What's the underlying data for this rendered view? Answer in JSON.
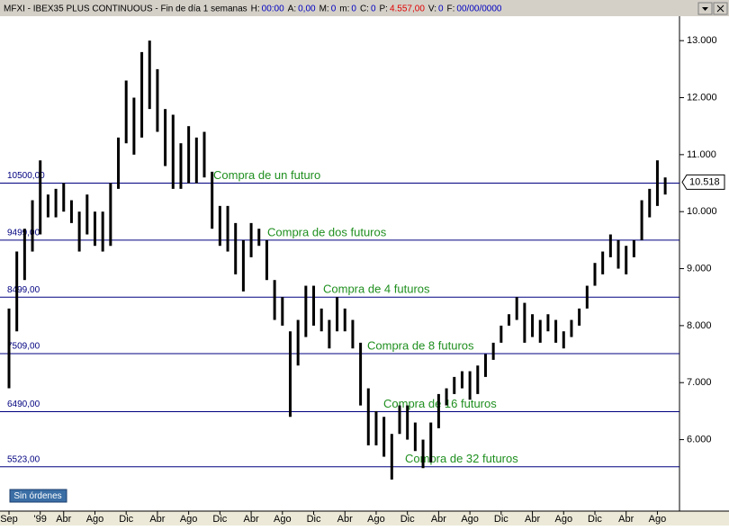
{
  "header": {
    "title": "MFXI - IBEX35 PLUS CONTINUOUS - Fin de día 1 semanas",
    "fields": [
      {
        "label": "H:",
        "value": "00:00",
        "color": "#0000c0"
      },
      {
        "label": "A:",
        "value": "0,00",
        "color": "#0000c0"
      },
      {
        "label": "M:",
        "value": "0",
        "color": "#0000c0"
      },
      {
        "label": "m:",
        "value": "0",
        "color": "#0000c0"
      },
      {
        "label": "C:",
        "value": "0",
        "color": "#0000c0"
      },
      {
        "label": "P:",
        "value": "4.557,00",
        "color": "#e00000"
      },
      {
        "label": "V:",
        "value": "0",
        "color": "#0000c0"
      },
      {
        "label": "F:",
        "value": "00/00/0000",
        "color": "#0000c0"
      }
    ]
  },
  "button": "Sin órdenes",
  "chart_data": {
    "type": "range-bar",
    "color": "#000000",
    "categories": [
      "Sep",
      null,
      null,
      null,
      "'99",
      null,
      null,
      "Abr",
      null,
      null,
      null,
      "Ago",
      null,
      null,
      null,
      "Dic",
      null,
      null,
      null,
      "Abr",
      null,
      null,
      null,
      "Ago",
      null,
      null,
      null,
      "Dic",
      null,
      null,
      null,
      "Abr",
      null,
      null,
      null,
      "Ago",
      null,
      null,
      null,
      "Dic",
      null,
      null,
      null,
      "Abr",
      null,
      null,
      null,
      "Ago",
      null,
      null,
      null,
      "Dic",
      null,
      null,
      null,
      "Abr",
      null,
      null,
      null,
      "Ago",
      null,
      null,
      null,
      "Dic",
      null,
      null,
      null,
      "Abr",
      null,
      null,
      null,
      "Ago",
      null,
      null,
      null,
      "Dic",
      null,
      null,
      null,
      "Abr",
      null,
      null,
      null,
      "Ago",
      null
    ],
    "low": [
      6900,
      7900,
      8800,
      9300,
      9600,
      9900,
      9900,
      10000,
      9800,
      9300,
      9600,
      9400,
      9300,
      9400,
      10400,
      11200,
      11000,
      11300,
      11800,
      11400,
      10800,
      10400,
      10400,
      10500,
      10500,
      10600,
      9700,
      9400,
      9300,
      8900,
      8600,
      9200,
      9400,
      8800,
      8100,
      8000,
      6400,
      7300,
      7800,
      8000,
      7900,
      7600,
      7900,
      7900,
      7600,
      6600,
      5900,
      5900,
      5700,
      5300,
      6100,
      6000,
      5800,
      5500,
      5600,
      6200,
      6600,
      6800,
      6900,
      6700,
      6800,
      7100,
      7400,
      7700,
      8000,
      8100,
      7700,
      7800,
      7700,
      7900,
      7700,
      7600,
      7800,
      8000,
      8300,
      8700,
      8900,
      9200,
      9000,
      8900,
      9200,
      9500,
      9900,
      10100,
      10300
    ],
    "high": [
      8300,
      9300,
      9700,
      10200,
      10900,
      10300,
      10400,
      10500,
      10200,
      10000,
      10300,
      10000,
      10000,
      10500,
      11300,
      12300,
      12000,
      12800,
      13000,
      12500,
      11800,
      11700,
      11200,
      11500,
      11300,
      11400,
      10700,
      10100,
      10100,
      9800,
      9500,
      9800,
      9700,
      9500,
      8800,
      8500,
      7900,
      8100,
      8700,
      8700,
      8300,
      8100,
      8500,
      8300,
      8100,
      7700,
      6900,
      6500,
      6400,
      6100,
      6600,
      6600,
      6300,
      6000,
      6300,
      6800,
      6900,
      7100,
      7200,
      7200,
      7300,
      7500,
      7700,
      8000,
      8200,
      8500,
      8400,
      8200,
      8100,
      8200,
      8100,
      7900,
      8100,
      8300,
      8700,
      9100,
      9300,
      9600,
      9500,
      9400,
      9500,
      10200,
      10400,
      10900,
      10600
    ],
    "ylim": [
      4746,
      13429
    ],
    "yticks": [
      {
        "value": 13000,
        "label": "13.000"
      },
      {
        "value": 12000,
        "label": "12.000"
      },
      {
        "value": 11000,
        "label": "11.000"
      },
      {
        "value": 10000,
        "label": "10.000"
      },
      {
        "value": 9000,
        "label": "9.000"
      },
      {
        "value": 8000,
        "label": "8.000"
      },
      {
        "value": 7000,
        "label": "7.000"
      },
      {
        "value": 6000,
        "label": "6.000"
      }
    ],
    "last_price": {
      "value": 10518,
      "label": "10.518"
    },
    "levels": [
      {
        "value": 10500,
        "label": "10500,00",
        "text": "Compra de un futuro"
      },
      {
        "value": 9499,
        "label": "9499,00",
        "text": "Compra de dos futuros"
      },
      {
        "value": 8499,
        "label": "8499,00",
        "text": "Compra de 4 futuros"
      },
      {
        "value": 7509,
        "label": "7509,00",
        "text": "Compra de 8 futuros"
      },
      {
        "value": 6490,
        "label": "6490,00",
        "text": "Compra de 16 futuros"
      },
      {
        "value": 5523,
        "label": "5523,00",
        "text": "Compra de 32 futuros"
      }
    ],
    "level_color": "#000080",
    "annotation_color": "#1f8f1f"
  }
}
